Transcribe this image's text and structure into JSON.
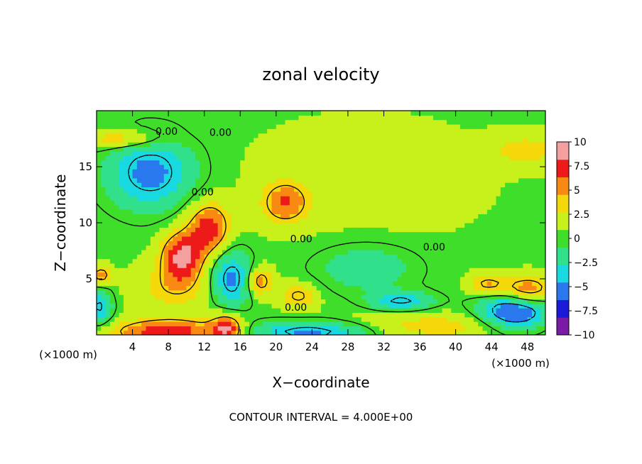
{
  "chart_data": {
    "type": "heatmap",
    "title": "zonal velocity",
    "xlabel": "X−coordinate",
    "ylabel": "Z−coordinate",
    "x_unit_left": "(×1000 m)",
    "x_unit_right": "(×1000 m)",
    "footer": "CONTOUR INTERVAL = 4.000E+00",
    "xlim": [
      0,
      50
    ],
    "ylim": [
      0,
      20
    ],
    "x_ticks": [
      "4",
      "8",
      "12",
      "16",
      "20",
      "24",
      "28",
      "32",
      "36",
      "40",
      "44",
      "48"
    ],
    "x_tick_values": [
      4,
      8,
      12,
      16,
      20,
      24,
      28,
      32,
      36,
      40,
      44,
      48
    ],
    "y_ticks": [
      "5",
      "10",
      "15"
    ],
    "y_tick_values": [
      5,
      10,
      15
    ],
    "colorbar": {
      "range": [
        -10,
        10
      ],
      "tick_labels": [
        "10",
        "7.5",
        "5",
        "2.5",
        "0",
        "−2.5",
        "−5",
        "−7.5",
        "−10"
      ],
      "tick_values": [
        10,
        7.5,
        5,
        2.5,
        0,
        -2.5,
        -5,
        -7.5,
        -10
      ],
      "colors": [
        "#7a1ba8",
        "#1a1ad8",
        "#2a78ee",
        "#18d8e0",
        "#30e08a",
        "#3ede2a",
        "#c8f01a",
        "#f4d80a",
        "#f88a14",
        "#ee1a1a",
        "#f4a0a0"
      ]
    },
    "contour_labels": [
      {
        "text": "0.00",
        "x": 7.8,
        "z": 18.1
      },
      {
        "text": "0.00",
        "x": 13.8,
        "z": 18.0
      },
      {
        "text": "0.00",
        "x": 11.8,
        "z": 12.7
      },
      {
        "text": "0.00",
        "x": 22.8,
        "z": 8.5
      },
      {
        "text": "0.00",
        "x": 37.6,
        "z": 7.8
      },
      {
        "text": "0.00",
        "x": 22.2,
        "z": 2.4
      }
    ],
    "features": [
      {
        "x": 6.0,
        "z": 14.5,
        "value": -6,
        "sx": 3.4,
        "sz": 2.3
      },
      {
        "x": 12.5,
        "z": 9.5,
        "value": 7,
        "sx": 1.6,
        "sz": 1.6
      },
      {
        "x": 9.5,
        "z": 7.0,
        "value": 8,
        "sx": 1.6,
        "sz": 1.5
      },
      {
        "x": 21.0,
        "z": 11.8,
        "value": 5.5,
        "sx": 1.8,
        "sz": 1.3
      },
      {
        "x": 15.0,
        "z": 5.0,
        "value": -6,
        "sx": 1.6,
        "sz": 1.8
      },
      {
        "x": 18.2,
        "z": 4.8,
        "value": 5,
        "sx": 1.0,
        "sz": 0.9
      },
      {
        "x": 22.5,
        "z": 3.5,
        "value": 4,
        "sx": 1.4,
        "sz": 0.8
      },
      {
        "x": 8.0,
        "z": 0.3,
        "value": 7,
        "sx": 4.5,
        "sz": 0.8
      },
      {
        "x": 14.5,
        "z": 0.6,
        "value": 7,
        "sx": 1.2,
        "sz": 0.9
      },
      {
        "x": 24.0,
        "z": 0.3,
        "value": -6,
        "sx": 5.0,
        "sz": 0.7
      },
      {
        "x": 46.5,
        "z": 2.0,
        "value": -8,
        "sx": 2.8,
        "sz": 1.2
      },
      {
        "x": 48.0,
        "z": 4.0,
        "value": 6,
        "sx": 2.0,
        "sz": 0.9
      },
      {
        "x": 43.5,
        "z": 4.5,
        "value": 4,
        "sx": 1.5,
        "sz": 0.7
      },
      {
        "x": 34.0,
        "z": 3.0,
        "value": -5,
        "sx": 2.5,
        "sz": 0.6
      },
      {
        "x": 3.0,
        "z": 17.5,
        "value": 4,
        "sx": 3.0,
        "sz": 0.6
      },
      {
        "x": 8.5,
        "z": 4.2,
        "value": 3,
        "sx": 3.0,
        "sz": 1.5
      },
      {
        "x": 38.0,
        "z": 0.8,
        "value": 3,
        "sx": 8.0,
        "sz": 0.9
      },
      {
        "x": 0.3,
        "z": 2.5,
        "value": -5,
        "sx": 1.0,
        "sz": 1.2
      },
      {
        "x": 0.5,
        "z": 5.3,
        "value": 5,
        "sx": 0.8,
        "sz": 0.6
      },
      {
        "x": 48.0,
        "z": 16.5,
        "value": 3,
        "sx": 3.0,
        "sz": 1.0
      },
      {
        "x": 30.0,
        "z": 6.0,
        "value": -3,
        "sx": 4.0,
        "sz": 1.5
      },
      {
        "x": 30.0,
        "z": 14.0,
        "value": 1.0,
        "sx": 10.0,
        "sz": 4.0
      }
    ]
  }
}
